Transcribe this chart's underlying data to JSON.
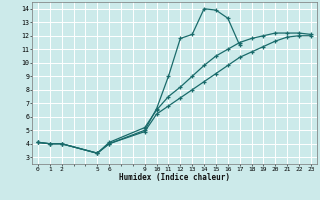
{
  "xlabel": "Humidex (Indice chaleur)",
  "bg_color": "#cceaea",
  "line_color": "#1a6b6b",
  "grid_color": "#ffffff",
  "xlim": [
    -0.5,
    23.5
  ],
  "ylim": [
    2.5,
    14.5
  ],
  "xtick_all": [
    0,
    1,
    2,
    3,
    4,
    5,
    6,
    7,
    8,
    9,
    10,
    11,
    12,
    13,
    14,
    15,
    16,
    17,
    18,
    19,
    20,
    21,
    22,
    23
  ],
  "xtick_labels_pos": [
    0,
    1,
    2,
    5,
    6,
    9,
    10,
    11,
    12,
    13,
    14,
    15,
    16,
    17,
    18,
    19,
    20,
    21,
    22,
    23
  ],
  "xtick_labels_val": [
    "0",
    "1",
    "2",
    "5",
    "6",
    "9",
    "10",
    "11",
    "12",
    "13",
    "14",
    "15",
    "16",
    "17",
    "18",
    "19",
    "20",
    "21",
    "22",
    "23"
  ],
  "yticks": [
    3,
    4,
    5,
    6,
    7,
    8,
    9,
    10,
    11,
    12,
    13,
    14
  ],
  "line1_x": [
    0,
    1,
    2,
    5,
    6,
    9,
    10,
    11,
    12,
    13,
    14,
    15,
    16,
    17
  ],
  "line1_y": [
    4.1,
    4.0,
    4.0,
    3.3,
    4.0,
    5.0,
    6.6,
    9.0,
    11.8,
    12.1,
    14.0,
    13.9,
    13.3,
    11.3
  ],
  "line2_x": [
    0,
    1,
    2,
    5,
    6,
    9,
    10,
    11,
    12,
    13,
    14,
    15,
    16,
    17,
    18,
    19,
    20,
    21,
    22,
    23
  ],
  "line2_y": [
    4.1,
    4.0,
    4.0,
    3.3,
    4.1,
    5.2,
    6.5,
    7.5,
    8.2,
    9.0,
    9.8,
    10.5,
    11.0,
    11.5,
    11.8,
    12.0,
    12.2,
    12.2,
    12.2,
    12.1
  ],
  "line3_x": [
    0,
    1,
    2,
    5,
    6,
    9,
    10,
    11,
    12,
    13,
    14,
    15,
    16,
    17,
    18,
    19,
    20,
    21,
    22,
    23
  ],
  "line3_y": [
    4.1,
    4.0,
    4.0,
    3.3,
    4.0,
    4.9,
    6.2,
    6.8,
    7.4,
    8.0,
    8.6,
    9.2,
    9.8,
    10.4,
    10.8,
    11.2,
    11.6,
    11.9,
    12.0,
    12.0
  ]
}
